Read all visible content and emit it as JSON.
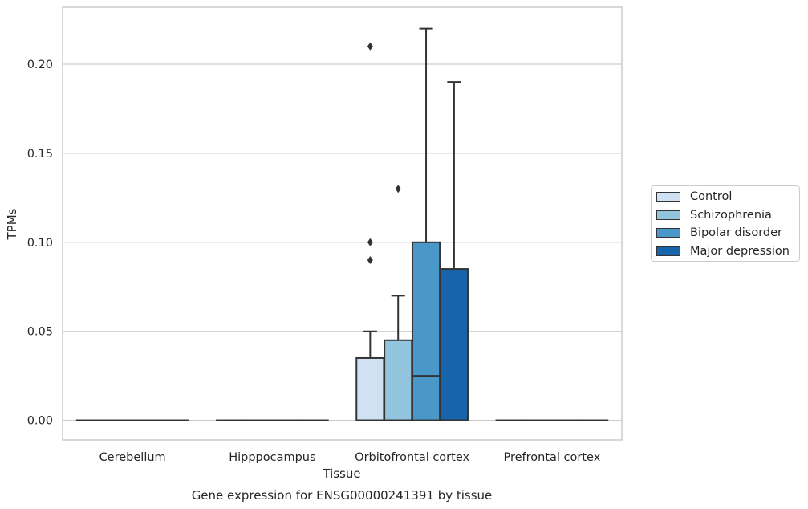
{
  "chart_data": {
    "type": "box",
    "title": "Gene expression for ENSG00000241391 by tissue",
    "xlabel": "Tissue",
    "ylabel": "TPMs",
    "ylim": [
      -0.011,
      0.232
    ],
    "yticks": [
      "0.00",
      "0.05",
      "0.10",
      "0.15",
      "0.20"
    ],
    "grid": true,
    "legend_position": "right",
    "categories": [
      "Cerebellum",
      "Hipppocampus",
      "Orbitofrontal cortex",
      "Prefrontal cortex"
    ],
    "series": [
      {
        "name": "Control",
        "color": "#cfe1f2",
        "boxes": [
          {
            "min": 0,
            "q1": 0,
            "median": 0,
            "q3": 0,
            "max": 0,
            "outliers": []
          },
          {
            "min": 0,
            "q1": 0,
            "median": 0,
            "q3": 0,
            "max": 0,
            "outliers": []
          },
          {
            "min": 0,
            "q1": 0,
            "median": 0,
            "q3": 0.035,
            "max": 0.05,
            "outliers": [
              0.09,
              0.1,
              0.21
            ]
          },
          {
            "min": 0,
            "q1": 0,
            "median": 0,
            "q3": 0,
            "max": 0,
            "outliers": []
          }
        ]
      },
      {
        "name": "Schizophrenia",
        "color": "#93c4de",
        "boxes": [
          {
            "min": 0,
            "q1": 0,
            "median": 0,
            "q3": 0,
            "max": 0,
            "outliers": []
          },
          {
            "min": 0,
            "q1": 0,
            "median": 0,
            "q3": 0,
            "max": 0,
            "outliers": []
          },
          {
            "min": 0,
            "q1": 0,
            "median": 0,
            "q3": 0.045,
            "max": 0.07,
            "outliers": [
              0.13
            ]
          },
          {
            "min": 0,
            "q1": 0,
            "median": 0,
            "q3": 0,
            "max": 0,
            "outliers": []
          }
        ]
      },
      {
        "name": "Bipolar disorder",
        "color": "#4a98c9",
        "boxes": [
          {
            "min": 0,
            "q1": 0,
            "median": 0,
            "q3": 0,
            "max": 0,
            "outliers": []
          },
          {
            "min": 0,
            "q1": 0,
            "median": 0,
            "q3": 0,
            "max": 0,
            "outliers": []
          },
          {
            "min": 0,
            "q1": 0,
            "median": 0.025,
            "q3": 0.1,
            "max": 0.22,
            "outliers": []
          },
          {
            "min": 0,
            "q1": 0,
            "median": 0,
            "q3": 0,
            "max": 0,
            "outliers": []
          }
        ]
      },
      {
        "name": "Major depression",
        "color": "#1764ab",
        "boxes": [
          {
            "min": 0,
            "q1": 0,
            "median": 0,
            "q3": 0,
            "max": 0,
            "outliers": []
          },
          {
            "min": 0,
            "q1": 0,
            "median": 0,
            "q3": 0,
            "max": 0,
            "outliers": []
          },
          {
            "min": 0,
            "q1": 0,
            "median": 0,
            "q3": 0.085,
            "max": 0.19,
            "outliers": []
          },
          {
            "min": 0,
            "q1": 0,
            "median": 0,
            "q3": 0,
            "max": 0,
            "outliers": []
          }
        ]
      }
    ]
  }
}
